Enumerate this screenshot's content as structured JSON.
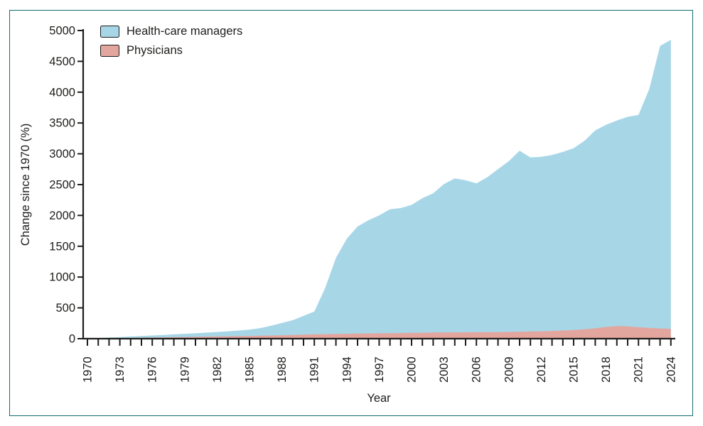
{
  "figure": {
    "border_color": "#126b6d",
    "background": "#ffffff",
    "ink_color": "#1d1d1b"
  },
  "legend": {
    "items": [
      {
        "label": "Health-care managers",
        "color": "#a7d7e7"
      },
      {
        "label": "Physicians",
        "color": "#e3a69f"
      }
    ]
  },
  "chart_data": {
    "type": "area",
    "title": "",
    "xlabel": "Year",
    "ylabel": "Change since 1970 (%)",
    "ylim": [
      0,
      5000
    ],
    "y_ticks": [
      0,
      500,
      1000,
      1500,
      2000,
      2500,
      3000,
      3500,
      4000,
      4500,
      5000
    ],
    "x_tick_label_step": 3,
    "x_tick_labels": [
      "1970",
      "1973",
      "1976",
      "1979",
      "1982",
      "1985",
      "1988",
      "1991",
      "1994",
      "1997",
      "2000",
      "2003",
      "2006",
      "2009",
      "2012",
      "2015",
      "2018",
      "2021",
      "2024"
    ],
    "grid": false,
    "legend_position": "top-left",
    "x": [
      1970,
      1971,
      1972,
      1973,
      1974,
      1975,
      1976,
      1977,
      1978,
      1979,
      1980,
      1981,
      1982,
      1983,
      1984,
      1985,
      1986,
      1987,
      1988,
      1989,
      1990,
      1991,
      1992,
      1993,
      1994,
      1995,
      1996,
      1997,
      1998,
      1999,
      2000,
      2001,
      2002,
      2003,
      2004,
      2005,
      2006,
      2007,
      2008,
      2009,
      2010,
      2011,
      2012,
      2013,
      2014,
      2015,
      2016,
      2017,
      2018,
      2019,
      2020,
      2021,
      2022,
      2023,
      2024
    ],
    "series": [
      {
        "name": "Health-care managers",
        "color": "#a7d7e7",
        "values": [
          0,
          10,
          18,
          27,
          35,
          44,
          52,
          61,
          70,
          79,
          88,
          98,
          108,
          120,
          133,
          148,
          172,
          210,
          255,
          300,
          370,
          440,
          820,
          1310,
          1620,
          1820,
          1920,
          2000,
          2100,
          2120,
          2170,
          2280,
          2360,
          2510,
          2600,
          2570,
          2520,
          2620,
          2750,
          2880,
          3050,
          2940,
          2950,
          2980,
          3030,
          3090,
          3210,
          3380,
          3470,
          3540,
          3600,
          3630,
          4050,
          4750,
          4850
        ]
      },
      {
        "name": "Physicians",
        "color": "#e3a69f",
        "values": [
          0,
          3,
          6,
          9,
          12,
          15,
          18,
          21,
          24,
          27,
          30,
          33,
          36,
          39,
          42,
          45,
          48,
          52,
          56,
          61,
          66,
          71,
          74,
          77,
          80,
          83,
          85,
          88,
          90,
          92,
          95,
          97,
          100,
          102,
          103,
          104,
          105,
          106,
          107,
          109,
          112,
          116,
          120,
          126,
          132,
          140,
          152,
          168,
          190,
          205,
          200,
          186,
          175,
          166,
          160
        ]
      }
    ]
  }
}
